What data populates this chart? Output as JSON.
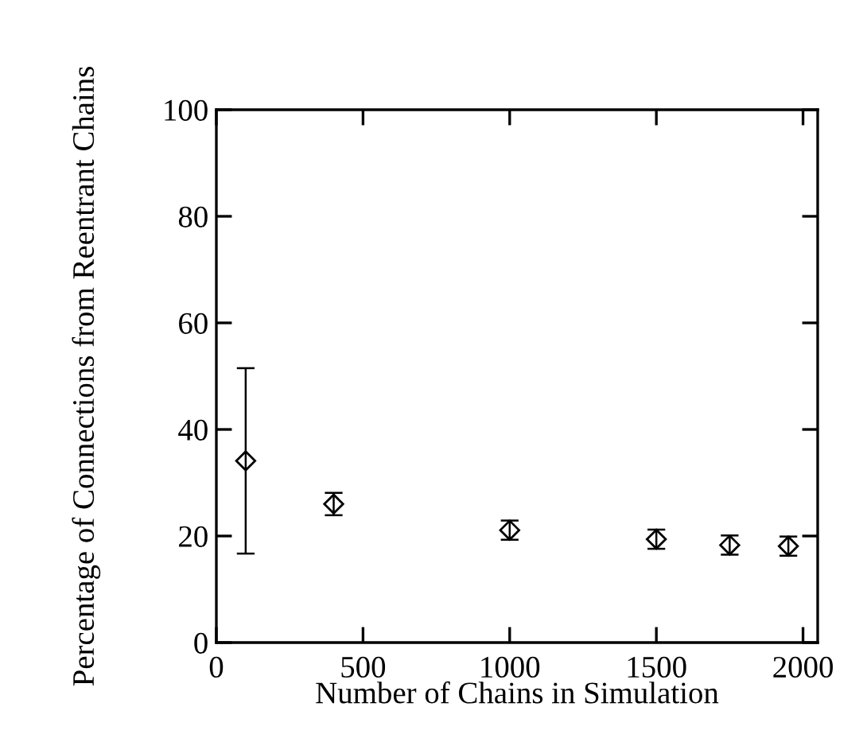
{
  "chart_data": {
    "type": "scatter",
    "xlabel": "Number of Chains in Simulation",
    "ylabel": "Percentage of Connections from Reentrant Chains",
    "x": [
      100,
      400,
      1000,
      1500,
      1750,
      1950
    ],
    "values": [
      34.1,
      26.0,
      21.1,
      19.4,
      18.3,
      18.1
    ],
    "errors": [
      17.4,
      2.1,
      1.8,
      1.8,
      1.8,
      1.8
    ],
    "color": "#000000",
    "marker": "diamond",
    "xlim": [
      0,
      2050
    ],
    "xticks": [
      0,
      500,
      1000,
      1500,
      2000
    ],
    "ylim": [
      0,
      100
    ],
    "yticks": [
      0,
      20,
      40,
      60,
      80,
      100
    ],
    "grid": false,
    "legend": false
  }
}
